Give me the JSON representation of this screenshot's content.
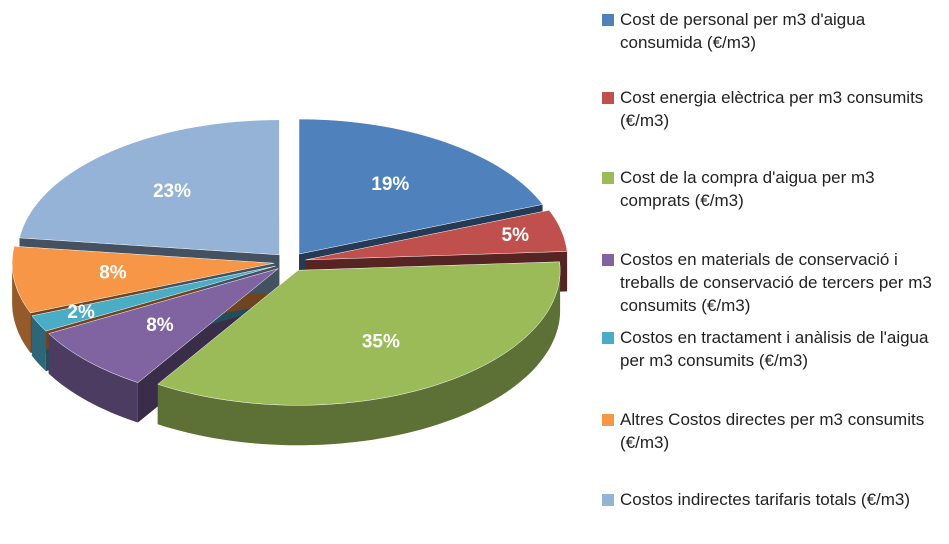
{
  "chart_data": {
    "type": "pie",
    "categories": [
      "Cost de personal per m3 d'aigua consumida (€/m3)",
      "Cost energia elèctrica per m3 consumits (€/m3)",
      "Cost de la compra d'aigua per m3 comprats (€/m3)",
      "Costos en materials de conservació i treballs de conservació de tercers per m3 consumits (€/m3)",
      "Costos en tractament i anàlisis de l'aigua per m3 consumits (€/m3)",
      "Altres Costos directes per m3 consumits (€/m3)",
      "Costos indirectes tarifaris totals (€/m3)"
    ],
    "values": [
      19,
      5,
      35,
      8,
      2,
      8,
      23
    ],
    "value_labels": [
      "19%",
      "5%",
      "35%",
      "8%",
      "2%",
      "8%",
      "23%"
    ],
    "colors": [
      "#4f81bd",
      "#c0504d",
      "#9bbb59",
      "#8064a2",
      "#4bacc6",
      "#f79646",
      "#95b3d7"
    ],
    "legend": "right"
  }
}
